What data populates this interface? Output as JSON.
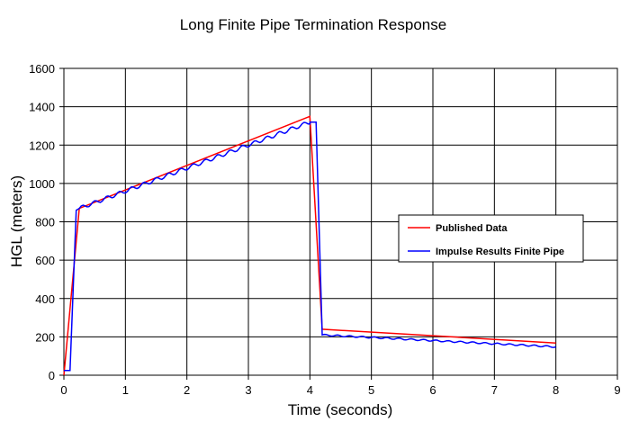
{
  "chart_data": {
    "type": "line",
    "title": "Long Finite Pipe Termination Response",
    "xlabel": "Time (seconds)",
    "ylabel": "HGL (meters)",
    "xlim": [
      0,
      9
    ],
    "ylim": [
      0,
      1600
    ],
    "xticks": [
      0,
      1,
      2,
      3,
      4,
      5,
      6,
      7,
      8,
      9
    ],
    "yticks": [
      0,
      200,
      400,
      600,
      800,
      1000,
      1200,
      1400,
      1600
    ],
    "grid": true,
    "legend_position": "right-center",
    "colors": {
      "published": "#ff0000",
      "impulse": "#0000ff",
      "grid": "#000000"
    },
    "series": [
      {
        "name": "Published Data",
        "color": "#ff0000",
        "x": [
          0,
          0.25,
          4.0,
          4.2,
          8.0
        ],
        "y": [
          0,
          870,
          1350,
          240,
          168
        ]
      },
      {
        "name": "Impulse Results Finite Pipe",
        "color": "#0000ff",
        "x": [
          0,
          0.1,
          0.2,
          0.25,
          4.0,
          4.1,
          4.2,
          8.0
        ],
        "y": [
          25,
          25,
          860,
          870,
          1320,
          1320,
          210,
          148
        ]
      }
    ]
  }
}
